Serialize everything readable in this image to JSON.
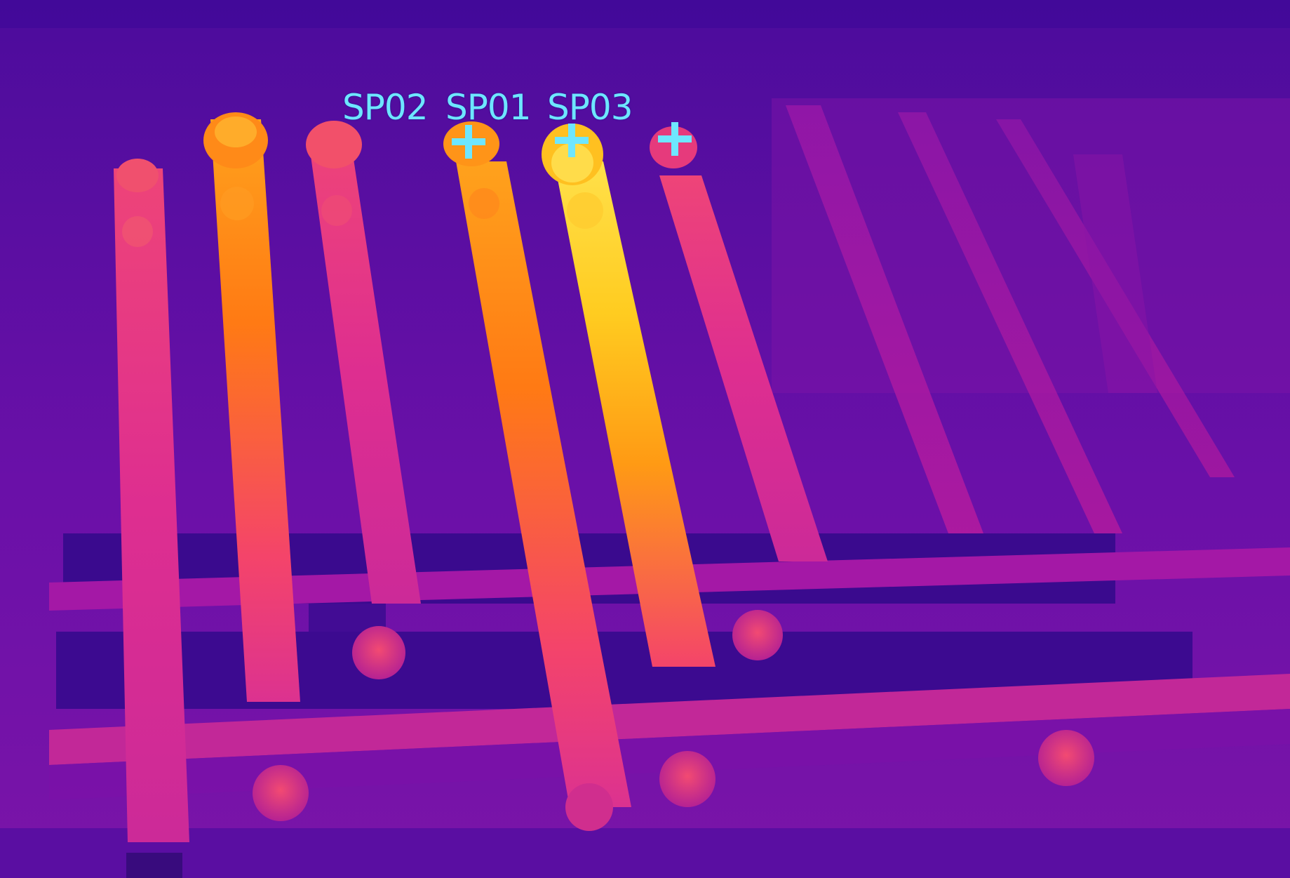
{
  "image": {
    "kind": "thermal-camera-frame",
    "palette": "ironbow",
    "subject": "busbar-connections-on-electrical-panel"
  },
  "colors": {
    "background_cold": "#4a0aa0",
    "mid": "#c01a9a",
    "warm": "#ff4a6a",
    "hot": "#ff9a10",
    "hottest": "#ffe040",
    "marker": "#6ee6ff"
  },
  "markers": [
    {
      "label": "SP02",
      "icon": "crosshair-icon"
    },
    {
      "label": "SP01",
      "icon": "crosshair-icon"
    },
    {
      "label": "SP03",
      "icon": "crosshair-icon"
    }
  ]
}
